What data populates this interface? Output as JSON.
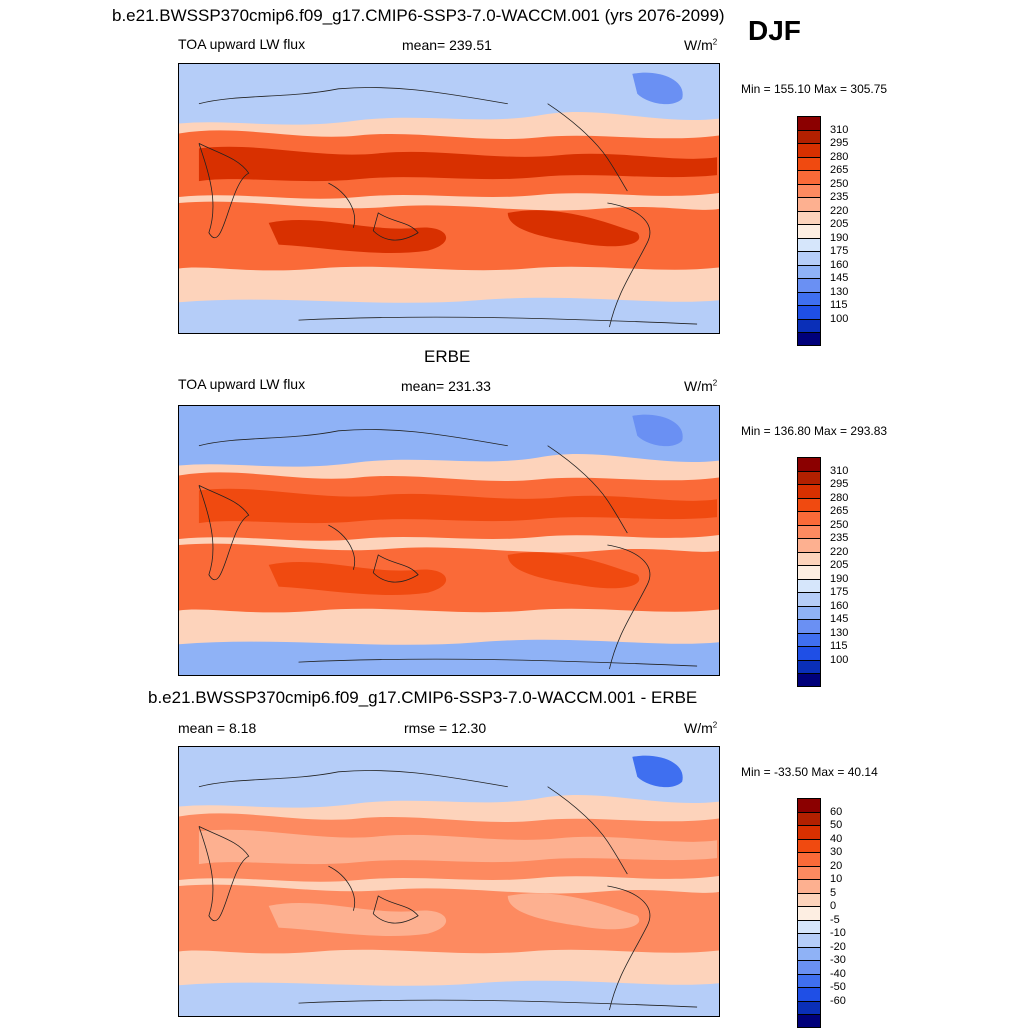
{
  "header": {
    "title": "b.e21.BWSSP370cmip6.f09_g17.CMIP6-SSP3-7.0-WACCM.001 (yrs 2076-2099)",
    "season": "DJF"
  },
  "chart_data": [
    {
      "type": "heatmap",
      "dataset": "b.e21.BWSSP370cmip6.f09_g17.CMIP6-SSP3-7.0-WACCM.001",
      "variable": "TOA upward LW flux",
      "mean_label": "mean= 239.51",
      "units_base": "W/m",
      "units_exp": "2",
      "minmax": "Min = 155.10 Max = 305.75",
      "colorbar_levels": [
        "310",
        "295",
        "280",
        "265",
        "250",
        "235",
        "220",
        "205",
        "190",
        "175",
        "160",
        "145",
        "130",
        "115",
        "100"
      ],
      "colors": [
        "#8b0000",
        "#b22000",
        "#d83000",
        "#f04a10",
        "#fa6a38",
        "#fd8a60",
        "#fdb090",
        "#fdd3bb",
        "#fdeee2",
        "#d6e6fb",
        "#b5cdf8",
        "#8fb2f6",
        "#6a90f3",
        "#3f6ff0",
        "#1f4fe6",
        "#0a2fb8",
        "#00007a"
      ],
      "region_fills": {
        "high_band": "#d83000",
        "mid": "#fa6a38",
        "pale": "#fdd3bb",
        "cold": "#b5cdf8",
        "coldest": "#6a90f3"
      }
    },
    {
      "type": "heatmap",
      "dataset": "ERBE",
      "variable": "TOA upward LW flux",
      "mean_label": "mean= 231.33",
      "units_base": "W/m",
      "units_exp": "2",
      "minmax": "Min = 136.80 Max = 293.83",
      "colorbar_levels": [
        "310",
        "295",
        "280",
        "265",
        "250",
        "235",
        "220",
        "205",
        "190",
        "175",
        "160",
        "145",
        "130",
        "115",
        "100"
      ],
      "colors": [
        "#8b0000",
        "#b22000",
        "#d83000",
        "#f04a10",
        "#fa6a38",
        "#fd8a60",
        "#fdb090",
        "#fdd3bb",
        "#fdeee2",
        "#d6e6fb",
        "#b5cdf8",
        "#8fb2f6",
        "#6a90f3",
        "#3f6ff0",
        "#1f4fe6",
        "#0a2fb8",
        "#00007a"
      ],
      "region_fills": {
        "high_band": "#f04a10",
        "mid": "#fa6a38",
        "pale": "#fdd3bb",
        "cold": "#8fb2f6",
        "coldest": "#6a90f3"
      }
    },
    {
      "type": "heatmap",
      "dataset": "b.e21.BWSSP370cmip6.f09_g17.CMIP6-SSP3-7.0-WACCM.001 - ERBE",
      "mean_label": "mean =   8.18",
      "rmse_label": "rmse =  12.30",
      "units_base": "W/m",
      "units_exp": "2",
      "minmax": "Min = -33.50 Max =  40.14",
      "colorbar_levels": [
        "60",
        "50",
        "40",
        "30",
        "20",
        "10",
        "5",
        "0",
        "-5",
        "-10",
        "-20",
        "-30",
        "-40",
        "-50",
        "-60"
      ],
      "colors": [
        "#8b0000",
        "#b22000",
        "#d83000",
        "#f04a10",
        "#fa6a38",
        "#fd8a60",
        "#fdb090",
        "#fdd3bb",
        "#fdeee2",
        "#d6e6fb",
        "#b5cdf8",
        "#8fb2f6",
        "#6a90f3",
        "#3f6ff0",
        "#1f4fe6",
        "#0a2fb8",
        "#00007a"
      ],
      "region_fills": {
        "high_band": "#fdb090",
        "mid": "#fd8a60",
        "pale": "#fdd3bb",
        "cold": "#b5cdf8",
        "coldest": "#3f6ff0"
      }
    }
  ]
}
